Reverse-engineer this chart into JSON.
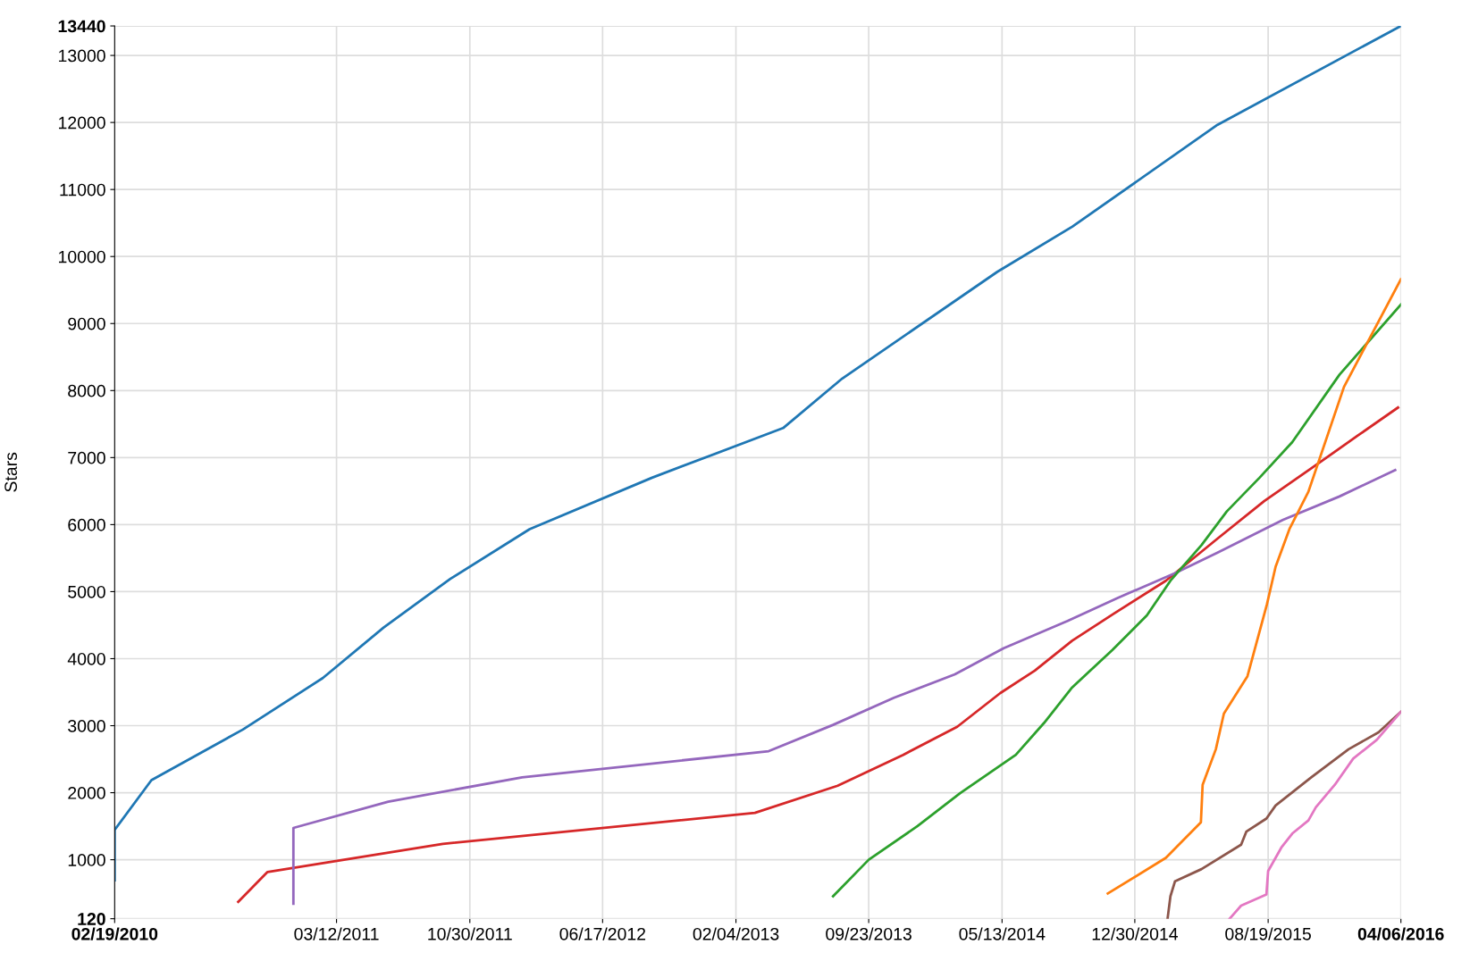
{
  "chart_data": {
    "type": "line",
    "ylabel": "Stars",
    "grid": true,
    "xlim": [
      "2010-02-19",
      "2016-04-06"
    ],
    "ylim": [
      120,
      13440
    ],
    "xticks": [
      {
        "value": "2010-02-19",
        "label": "02/19/2010"
      },
      {
        "value": "2011-03-12",
        "label": "03/12/2011"
      },
      {
        "value": "2011-10-30",
        "label": "10/30/2011"
      },
      {
        "value": "2012-06-17",
        "label": "06/17/2012"
      },
      {
        "value": "2013-02-04",
        "label": "02/04/2013"
      },
      {
        "value": "2013-09-23",
        "label": "09/23/2013"
      },
      {
        "value": "2014-05-13",
        "label": "05/13/2014"
      },
      {
        "value": "2014-12-30",
        "label": "12/30/2014"
      },
      {
        "value": "2015-08-19",
        "label": "08/19/2015"
      },
      {
        "value": "2016-04-06",
        "label": "04/06/2016"
      }
    ],
    "yticks": [
      120,
      1000,
      2000,
      3000,
      4000,
      5000,
      6000,
      7000,
      8000,
      9000,
      10000,
      11000,
      12000,
      13000,
      13440
    ],
    "series": [
      {
        "color": "#1f77b4",
        "x": [
          "2010-02-19",
          "2010-02-19",
          "2010-04-24",
          "2010-09-30",
          "2011-02-16",
          "2011-06-02",
          "2011-09-26",
          "2012-02-11",
          "2012-09-11",
          "2013-04-27",
          "2013-08-08",
          "2014-05-05",
          "2014-09-12",
          "2015-05-23",
          "2016-04-06"
        ],
        "values": [
          693,
          1447,
          2187,
          2942,
          3710,
          4465,
          5191,
          5932,
          6700,
          7440,
          8180,
          9773,
          10444,
          11966,
          13440
        ]
      },
      {
        "color": "#d62728",
        "x": [
          "2010-09-22",
          "2010-11-12",
          "2011-09-13",
          "2013-03-09",
          "2013-07-31",
          "2013-11-22",
          "2014-02-24",
          "2014-05-10",
          "2014-07-09",
          "2014-09-12",
          "2014-11-24",
          "2015-02-22",
          "2015-05-23",
          "2015-08-12",
          "2015-11-02",
          "2016-01-22",
          "2016-04-01"
        ],
        "values": [
          371,
          818,
          1237,
          1699,
          2104,
          2565,
          2984,
          3487,
          3822,
          4269,
          4674,
          5163,
          5792,
          6350,
          6839,
          7328,
          7747
        ]
      },
      {
        "color": "#9467bd",
        "x": [
          "2010-12-27",
          "2010-12-27",
          "2011-06-10",
          "2012-01-29",
          "2013-04-02",
          "2013-07-23",
          "2013-11-06",
          "2014-02-20",
          "2014-05-16",
          "2014-09-04",
          "2014-12-02",
          "2015-03-10",
          "2015-05-23",
          "2015-09-14",
          "2015-12-21",
          "2016-03-27"
        ],
        "values": [
          343,
          1475,
          1866,
          2229,
          2620,
          3012,
          3417,
          3766,
          4157,
          4562,
          4912,
          5275,
          5582,
          6071,
          6420,
          6812
        ]
      },
      {
        "color": "#2ca02c",
        "x": [
          "2013-07-23",
          "2013-09-23",
          "2013-12-17",
          "2014-03-01",
          "2014-06-06",
          "2014-07-25",
          "2014-09-12",
          "2014-11-21",
          "2015-01-20",
          "2015-03-02",
          "2015-04-25",
          "2015-06-08",
          "2015-08-04",
          "2015-09-30",
          "2015-12-21",
          "2016-04-06"
        ],
        "values": [
          455,
          1000,
          1503,
          1992,
          2565,
          3040,
          3571,
          4129,
          4646,
          5163,
          5694,
          6197,
          6700,
          7231,
          8236,
          9284
        ]
      },
      {
        "color": "#ff7f0e",
        "x": [
          "2014-11-13",
          "2015-02-22",
          "2015-04-24",
          "2015-04-27",
          "2015-05-20",
          "2015-06-03",
          "2015-07-14",
          "2015-08-17",
          "2015-09-01",
          "2015-09-25",
          "2015-10-28",
          "2015-12-29",
          "2016-04-06"
        ],
        "values": [
          497,
          1028,
          1559,
          2118,
          2649,
          3180,
          3738,
          4814,
          5373,
          5932,
          6490,
          8055,
          9661
        ]
      },
      {
        "color": "#8c564b",
        "x": [
          "2015-02-25",
          "2015-03-02",
          "2015-03-10",
          "2015-04-25",
          "2015-07-03",
          "2015-07-12",
          "2015-08-16",
          "2015-09-01",
          "2015-11-02",
          "2016-01-06",
          "2016-02-27",
          "2016-04-06"
        ],
        "values": [
          120,
          455,
          679,
          860,
          1224,
          1419,
          1615,
          1810,
          2229,
          2649,
          2900,
          3207
        ]
      },
      {
        "color": "#e377c2",
        "x": [
          "2015-06-13",
          "2015-07-03",
          "2015-08-16",
          "2015-08-19",
          "2015-09-11",
          "2015-09-30",
          "2015-10-28",
          "2015-11-10",
          "2015-12-13",
          "2016-01-14",
          "2016-02-24",
          "2016-04-06"
        ],
        "values": [
          120,
          315,
          483,
          832,
          1182,
          1391,
          1587,
          1782,
          2118,
          2509,
          2788,
          3207
        ]
      }
    ]
  }
}
